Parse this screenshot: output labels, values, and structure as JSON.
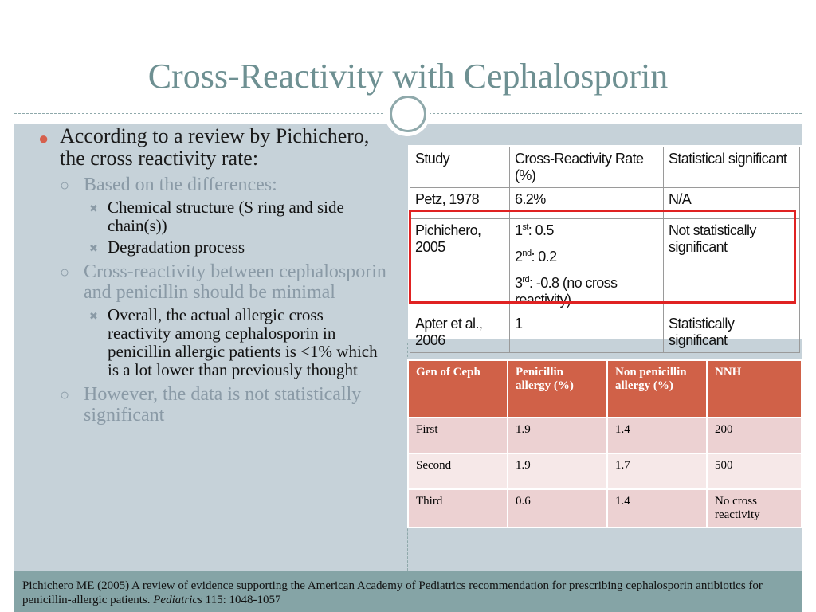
{
  "slide": {
    "title": "Cross-Reactivity with Cephalosporin"
  },
  "bullets": {
    "l1": "According to a review by Pichichero, the cross reactivity rate:",
    "sub1": "Based on the differences:",
    "sub1_items": [
      "Chemical structure (S ring and side chain(s))",
      "Degradation process"
    ],
    "sub2": "Cross-reactivity between cephalosporin and penicillin should be minimal",
    "sub2_items": [
      "Overall, the actual allergic cross reactivity among cephalosporin in penicillin allergic patients is <1% which is a lot lower than previously thought"
    ],
    "sub3": "However, the data is not statistically significant"
  },
  "study_table": {
    "headers": [
      "Study",
      "Cross-Reactivity Rate (%)",
      "Statistical significant"
    ],
    "rows": [
      {
        "study": "Petz, 1978",
        "rate": "6.2%",
        "sig": "N/A"
      },
      {
        "study": "Pichichero, 2005",
        "rate_lines": [
          {
            "num": "1",
            "sup": "st",
            "text": ": 0.5"
          },
          {
            "num": "2",
            "sup": "nd",
            "text": ": 0.2"
          },
          {
            "num": "3",
            "sup": "rd",
            "text": ": -0.8 (no cross reactivity)"
          }
        ],
        "sig": "Not statistically significant"
      },
      {
        "study": "Apter et al., 2006",
        "rate": "1",
        "sig": "Statistically significant"
      }
    ]
  },
  "gen_table": {
    "headers": [
      "Gen of Ceph",
      "Penicillin allergy (%)",
      "Non penicillin allergy (%)",
      "NNH"
    ],
    "rows": [
      [
        "First",
        "1.9",
        "1.4",
        "200"
      ],
      [
        "Second",
        "1.9",
        "1.7",
        "500"
      ],
      [
        "Third",
        "0.6",
        "1.4",
        "No cross reactivity"
      ]
    ]
  },
  "footer": {
    "text_before": "Pichichero ME (2005) A review of evidence supporting the American Academy of Pediatrics recommendation for prescribing cephalosporin antibiotics for penicillin-allergic patients. ",
    "journal": "Pediatrics",
    "text_after": " 115: 1048-1057"
  },
  "colors": {
    "title": "#6e9092",
    "accent_red": "#d06148",
    "highlight_box": "#e02222",
    "body_bg": "#c6d2d9",
    "footer_bg": "#85a4a6"
  }
}
